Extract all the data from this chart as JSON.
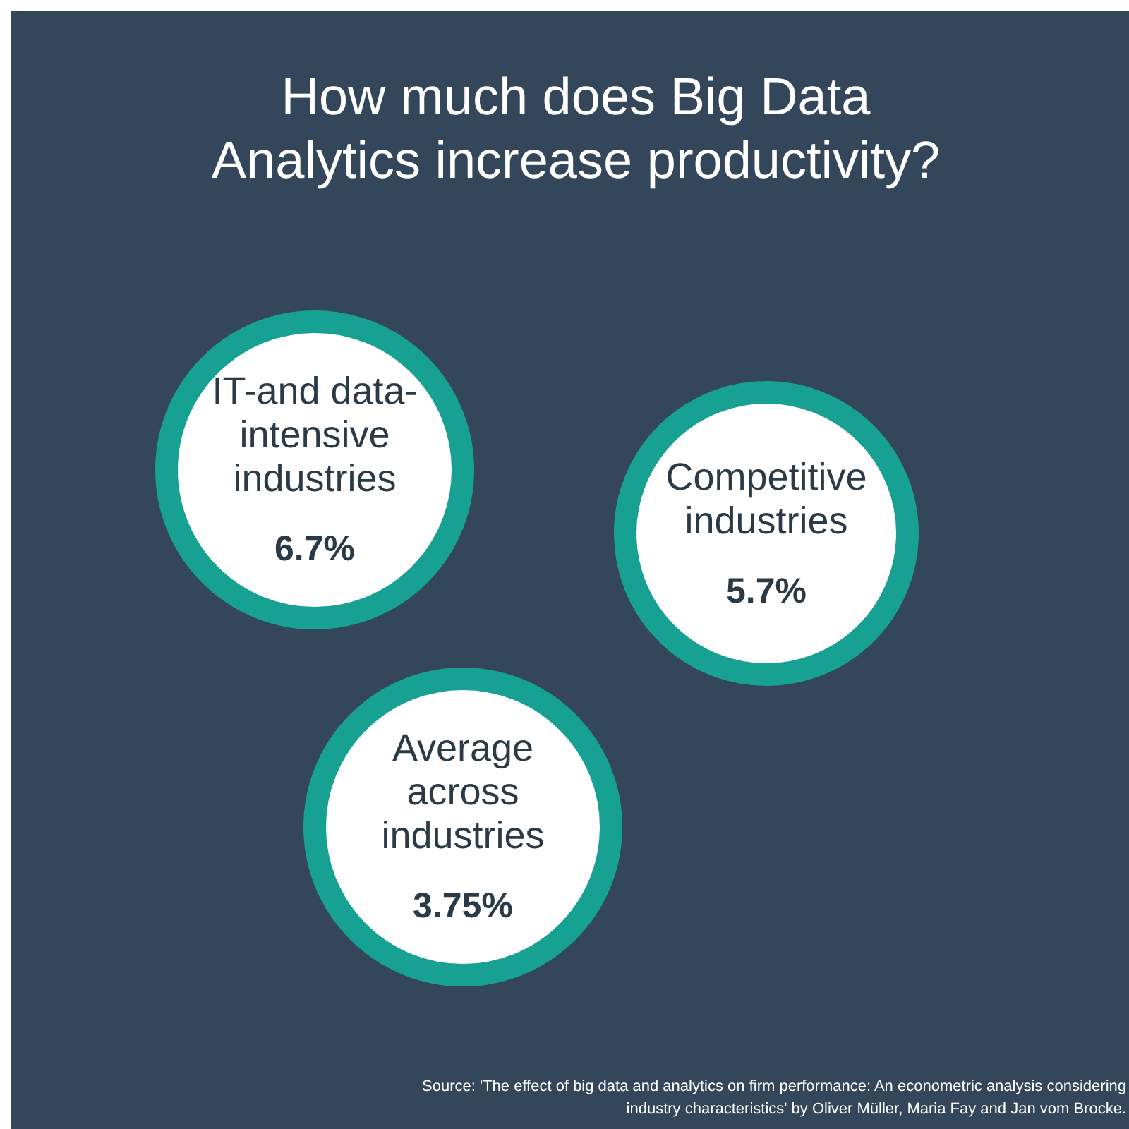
{
  "chart_data": {
    "type": "other",
    "title": "How much does Big Data Analytics increase productivity?",
    "categories": [
      "IT-and data-intensive industries",
      "Competitive industries",
      "Average across industries"
    ],
    "values": [
      6.7,
      5.7,
      3.75
    ],
    "value_labels": [
      "6.7%",
      "5.7%",
      "3.75%"
    ],
    "color": "#16a192",
    "annotations": [
      "Source: 'The effect of big data and analytics on firm performance: An econometric analysis considering industry characteristics' by Oliver Müller, Maria Fay and Jan vom Brocke."
    ]
  }
}
